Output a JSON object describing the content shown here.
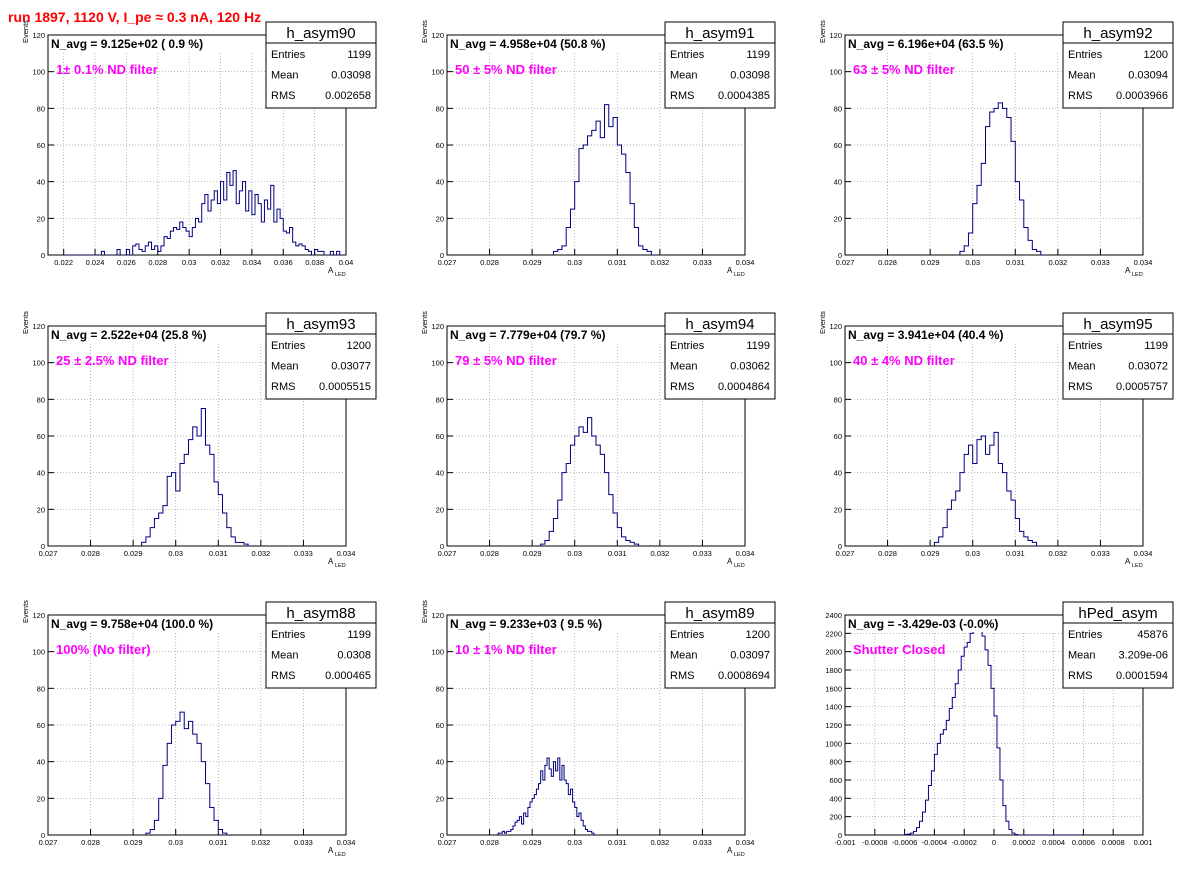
{
  "page": {
    "title": "run 1897,  1120 V, I_pe ≈ 0.3 nA, 120 Hz"
  },
  "style": {
    "histogram_color": "#000080",
    "note_color": "#ff00ff",
    "title_color": "#ff0000",
    "grid_style": "dotted",
    "axis_color": "#000000"
  },
  "chart_data": [
    {
      "type": "histogram",
      "name": "h_asym90",
      "stats": {
        "entries_label": "Entries",
        "entries": "1199",
        "mean_label": "Mean",
        "mean": "0.03098",
        "rms_label": "RMS",
        "rms": "0.002658"
      },
      "header": "N_avg = 9.125e+02 ( 0.9 %)",
      "note": "1± 0.1% ND filter",
      "xlabel": "A",
      "xlabel_sub": "LED",
      "ylabel": "Events",
      "xlim": [
        0.021,
        0.04
      ],
      "ylim": [
        0,
        120
      ],
      "xticks": [
        0.022,
        0.024,
        0.026,
        0.028,
        0.03,
        0.032,
        0.034,
        0.036,
        0.038,
        0.04
      ],
      "xtick_labels": [
        "0.022",
        "0.024",
        "0.026",
        "0.028",
        "0.03",
        "0.032",
        "0.034",
        "0.036",
        "0.038",
        "0.04"
      ],
      "yticks": [
        0,
        20,
        40,
        60,
        80,
        100,
        120
      ],
      "ytick_labels": [
        "0",
        "20",
        "40",
        "60",
        "80",
        "100",
        "120"
      ],
      "grid": true,
      "bins": {
        "start": 0.0218,
        "width": 0.0002,
        "counts": [
          0,
          0,
          0,
          0,
          0,
          0,
          0,
          0,
          0,
          0,
          0,
          0,
          0,
          2,
          0,
          0,
          0,
          0,
          3,
          0,
          0,
          3,
          0,
          5,
          6,
          3,
          2,
          5,
          7,
          3,
          5,
          2,
          5,
          10,
          9,
          13,
          15,
          14,
          18,
          15,
          13,
          10,
          15,
          20,
          18,
          28,
          33,
          24,
          30,
          35,
          28,
          40,
          30,
          45,
          38,
          46,
          28,
          35,
          40,
          24,
          35,
          22,
          33,
          28,
          18,
          30,
          25,
          38,
          18,
          25,
          20,
          13,
          12,
          15,
          7,
          5,
          6,
          5,
          3,
          2,
          0,
          3,
          2,
          2,
          0,
          0,
          2,
          0,
          2,
          0,
          0,
          0,
          0,
          0,
          0
        ]
      }
    },
    {
      "type": "histogram",
      "name": "h_asym91",
      "stats": {
        "entries_label": "Entries",
        "entries": "1199",
        "mean_label": "Mean",
        "mean": "0.03098",
        "rms_label": "RMS",
        "rms": "0.0004385"
      },
      "header": "N_avg = 4.958e+04 (50.8 %)",
      "note": "50 ± 5% ND filter",
      "xlabel": "A",
      "xlabel_sub": "LED",
      "ylabel": "Events",
      "xlim": [
        0.027,
        0.034
      ],
      "ylim": [
        0,
        120
      ],
      "xticks": [
        0.027,
        0.028,
        0.029,
        0.03,
        0.031,
        0.032,
        0.033,
        0.034
      ],
      "xtick_labels": [
        "0.027",
        "0.028",
        "0.029",
        "0.03",
        "0.031",
        "0.032",
        "0.033",
        "0.034"
      ],
      "yticks": [
        0,
        20,
        40,
        60,
        80,
        100,
        120
      ],
      "ytick_labels": [
        "0",
        "20",
        "40",
        "60",
        "80",
        "100",
        "120"
      ],
      "grid": true,
      "bins": {
        "start": 0.0295,
        "width": 0.0001,
        "counts": [
          2,
          3,
          5,
          15,
          25,
          40,
          58,
          60,
          65,
          68,
          73,
          64,
          82,
          70,
          75,
          60,
          55,
          45,
          28,
          15,
          5,
          3,
          2,
          0,
          0
        ]
      }
    },
    {
      "type": "histogram",
      "name": "h_asym92",
      "stats": {
        "entries_label": "Entries",
        "entries": "1200",
        "mean_label": "Mean",
        "mean": "0.03094",
        "rms_label": "RMS",
        "rms": "0.0003966"
      },
      "header": "N_avg = 6.196e+04 (63.5 %)",
      "note": "63 ± 5% ND filter",
      "xlabel": "A",
      "xlabel_sub": "LED",
      "ylabel": "Events",
      "xlim": [
        0.027,
        0.034
      ],
      "ylim": [
        0,
        120
      ],
      "xticks": [
        0.027,
        0.028,
        0.029,
        0.03,
        0.031,
        0.032,
        0.033,
        0.034
      ],
      "xtick_labels": [
        "0.027",
        "0.028",
        "0.029",
        "0.03",
        "0.031",
        "0.032",
        "0.033",
        "0.034"
      ],
      "yticks": [
        0,
        20,
        40,
        60,
        80,
        100,
        120
      ],
      "ytick_labels": [
        "0",
        "20",
        "40",
        "60",
        "80",
        "100",
        "120"
      ],
      "grid": true,
      "bins": {
        "start": 0.0297,
        "width": 0.0001,
        "counts": [
          2,
          5,
          12,
          28,
          38,
          50,
          70,
          78,
          80,
          83,
          80,
          75,
          62,
          40,
          30,
          15,
          8,
          3,
          2,
          0
        ]
      }
    },
    {
      "type": "histogram",
      "name": "h_asym93",
      "stats": {
        "entries_label": "Entries",
        "entries": "1200",
        "mean_label": "Mean",
        "mean": "0.03077",
        "rms_label": "RMS",
        "rms": "0.0005515"
      },
      "header": "N_avg = 2.522e+04 (25.8 %)",
      "note": "25 ± 2.5% ND filter",
      "xlabel": "A",
      "xlabel_sub": "LED",
      "ylabel": "Events",
      "xlim": [
        0.027,
        0.034
      ],
      "ylim": [
        0,
        120
      ],
      "xticks": [
        0.027,
        0.028,
        0.029,
        0.03,
        0.031,
        0.032,
        0.033,
        0.034
      ],
      "xtick_labels": [
        "0.027",
        "0.028",
        "0.029",
        "0.03",
        "0.031",
        "0.032",
        "0.033",
        "0.034"
      ],
      "yticks": [
        0,
        20,
        40,
        60,
        80,
        100,
        120
      ],
      "ytick_labels": [
        "0",
        "20",
        "40",
        "60",
        "80",
        "100",
        "120"
      ],
      "grid": true,
      "bins": {
        "start": 0.0292,
        "width": 0.0001,
        "counts": [
          2,
          5,
          10,
          15,
          18,
          22,
          38,
          40,
          30,
          45,
          50,
          58,
          65,
          60,
          75,
          55,
          50,
          35,
          28,
          18,
          10,
          5,
          2,
          2,
          1,
          0
        ]
      }
    },
    {
      "type": "histogram",
      "name": "h_asym94",
      "stats": {
        "entries_label": "Entries",
        "entries": "1199",
        "mean_label": "Mean",
        "mean": "0.03062",
        "rms_label": "RMS",
        "rms": "0.0004864"
      },
      "header": "N_avg = 7.779e+04 (79.7 %)",
      "note": "79 ± 5% ND filter",
      "xlabel": "A",
      "xlabel_sub": "LED",
      "ylabel": "Events",
      "xlim": [
        0.027,
        0.034
      ],
      "ylim": [
        0,
        120
      ],
      "xticks": [
        0.027,
        0.028,
        0.029,
        0.03,
        0.031,
        0.032,
        0.033,
        0.034
      ],
      "xtick_labels": [
        "0.027",
        "0.028",
        "0.029",
        "0.03",
        "0.031",
        "0.032",
        "0.033",
        "0.034"
      ],
      "yticks": [
        0,
        20,
        40,
        60,
        80,
        100,
        120
      ],
      "ytick_labels": [
        "0",
        "20",
        "40",
        "60",
        "80",
        "100",
        "120"
      ],
      "grid": true,
      "bins": {
        "start": 0.0292,
        "width": 0.0001,
        "counts": [
          1,
          3,
          8,
          15,
          25,
          40,
          45,
          55,
          60,
          65,
          62,
          70,
          60,
          55,
          50,
          40,
          28,
          18,
          10,
          5,
          3,
          2,
          1,
          0
        ]
      }
    },
    {
      "type": "histogram",
      "name": "h_asym95",
      "stats": {
        "entries_label": "Entries",
        "entries": "1199",
        "mean_label": "Mean",
        "mean": "0.03072",
        "rms_label": "RMS",
        "rms": "0.0005757"
      },
      "header": "N_avg = 3.941e+04 (40.4 %)",
      "note": "40 ± 4% ND filter",
      "xlabel": "A",
      "xlabel_sub": "LED",
      "ylabel": "Events",
      "xlim": [
        0.027,
        0.034
      ],
      "ylim": [
        0,
        120
      ],
      "xticks": [
        0.027,
        0.028,
        0.029,
        0.03,
        0.031,
        0.032,
        0.033,
        0.034
      ],
      "xtick_labels": [
        "0.027",
        "0.028",
        "0.029",
        "0.03",
        "0.031",
        "0.032",
        "0.033",
        "0.034"
      ],
      "yticks": [
        0,
        20,
        40,
        60,
        80,
        100,
        120
      ],
      "ytick_labels": [
        "0",
        "20",
        "40",
        "60",
        "80",
        "100",
        "120"
      ],
      "grid": true,
      "bins": {
        "start": 0.0291,
        "width": 0.0001,
        "counts": [
          2,
          5,
          10,
          20,
          25,
          30,
          40,
          50,
          55,
          45,
          58,
          60,
          50,
          55,
          62,
          45,
          40,
          30,
          25,
          15,
          8,
          5,
          3,
          2,
          0
        ]
      }
    },
    {
      "type": "histogram",
      "name": "h_asym88",
      "stats": {
        "entries_label": "Entries",
        "entries": "1199",
        "mean_label": "Mean",
        "mean": "0.0308",
        "rms_label": "RMS",
        "rms": "0.000465"
      },
      "header": "N_avg = 9.758e+04 (100.0 %)",
      "note": "100% (No filter)",
      "xlabel": "A",
      "xlabel_sub": "LED",
      "ylabel": "Events",
      "xlim": [
        0.027,
        0.034
      ],
      "ylim": [
        0,
        120
      ],
      "xticks": [
        0.027,
        0.028,
        0.029,
        0.03,
        0.031,
        0.032,
        0.033,
        0.034
      ],
      "xtick_labels": [
        "0.027",
        "0.028",
        "0.029",
        "0.03",
        "0.031",
        "0.032",
        "0.033",
        "0.034"
      ],
      "yticks": [
        0,
        20,
        40,
        60,
        80,
        100,
        120
      ],
      "ytick_labels": [
        "0",
        "20",
        "40",
        "60",
        "80",
        "100",
        "120"
      ],
      "grid": true,
      "bins": {
        "start": 0.0293,
        "width": 0.0001,
        "counts": [
          1,
          3,
          8,
          20,
          38,
          50,
          60,
          62,
          67,
          58,
          62,
          55,
          50,
          40,
          28,
          15,
          8,
          3,
          1,
          0
        ]
      }
    },
    {
      "type": "histogram",
      "name": "h_asym89",
      "stats": {
        "entries_label": "Entries",
        "entries": "1200",
        "mean_label": "Mean",
        "mean": "0.03097",
        "rms_label": "RMS",
        "rms": "0.0008694"
      },
      "header": "N_avg = 9.233e+03 ( 9.5 %)",
      "note": "10 ± 1% ND filter",
      "xlabel": "A",
      "xlabel_sub": "LED",
      "ylabel": "Events",
      "xlim": [
        0.027,
        0.034
      ],
      "ylim": [
        0,
        120
      ],
      "xticks": [
        0.027,
        0.028,
        0.029,
        0.03,
        0.031,
        0.032,
        0.033,
        0.034
      ],
      "xtick_labels": [
        "0.027",
        "0.028",
        "0.029",
        "0.03",
        "0.031",
        "0.032",
        "0.033",
        "0.034"
      ],
      "yticks": [
        0,
        20,
        40,
        60,
        80,
        100,
        120
      ],
      "ytick_labels": [
        "0",
        "20",
        "40",
        "60",
        "80",
        "100",
        "120"
      ],
      "grid": true,
      "bins": {
        "start": 0.0282,
        "width": 5e-05,
        "counts": [
          1,
          1,
          2,
          1,
          2,
          2,
          3,
          5,
          7,
          8,
          10,
          6,
          12,
          10,
          15,
          18,
          20,
          22,
          25,
          28,
          35,
          30,
          38,
          42,
          36,
          32,
          40,
          35,
          42,
          30,
          38,
          30,
          28,
          22,
          25,
          18,
          15,
          10,
          12,
          8,
          5,
          3,
          2,
          2,
          1,
          0
        ]
      }
    },
    {
      "type": "histogram",
      "name": "hPed_asym",
      "stats": {
        "entries_label": "Entries",
        "entries": "45876",
        "mean_label": "Mean",
        "mean": "3.209e-06",
        "rms_label": "RMS",
        "rms": "0.0001594"
      },
      "header": "N_avg = -3.429e-03 (-0.0%)",
      "note": "Shutter Closed",
      "xlabel": "",
      "xlabel_sub": "",
      "ylabel": "",
      "xlim": [
        -0.001,
        0.001
      ],
      "ylim": [
        0,
        2400
      ],
      "xticks": [
        -0.001,
        -0.0008,
        -0.0006,
        -0.0004,
        -0.0002,
        0,
        0.0002,
        0.0004,
        0.0006,
        0.0008,
        0.001
      ],
      "xtick_labels": [
        "-0.001",
        "-0.0008",
        "-0.0006",
        "-0.0004",
        "-0.0002",
        "0",
        "0.0002",
        "0.0004",
        "0.0006",
        "0.0008",
        "0.001"
      ],
      "yticks": [
        0,
        200,
        400,
        600,
        800,
        1000,
        1200,
        1400,
        1600,
        1800,
        2000,
        2200,
        2400
      ],
      "ytick_labels": [
        "0",
        "200",
        "400",
        "600",
        "800",
        "1000",
        "1200",
        "1400",
        "1600",
        "1800",
        "2000",
        "2200",
        "2400"
      ],
      "grid": true,
      "bins": {
        "start": -0.0006,
        "width": 2e-05,
        "counts": [
          5,
          10,
          20,
          40,
          80,
          150,
          250,
          380,
          540,
          700,
          880,
          1000,
          1100,
          1150,
          1250,
          1380,
          1500,
          1650,
          1800,
          1950,
          2050,
          2100,
          2200,
          2280,
          2260,
          2230,
          2170,
          2020,
          1850,
          1600,
          1300,
          950,
          600,
          320,
          150,
          60,
          20,
          5,
          0,
          0,
          0,
          0,
          0,
          0,
          0,
          0,
          0,
          0,
          0,
          0,
          0,
          0,
          0,
          0,
          0,
          0,
          0,
          0,
          0,
          0
        ]
      }
    }
  ]
}
